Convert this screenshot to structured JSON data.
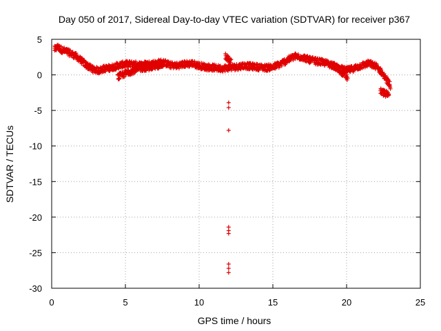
{
  "chart_data": {
    "type": "scatter",
    "title": "Day 050 of 2017, Sidereal Day-to-day VTEC variation (SDTVAR) for receiver p367",
    "xlabel": "GPS time / hours",
    "ylabel": "SDTVAR / TECUs",
    "xlim": [
      0,
      25
    ],
    "ylim": [
      -30,
      5
    ],
    "xticks": [
      "0",
      "5",
      "10",
      "15",
      "20",
      "25"
    ],
    "yticks": [
      "5",
      "0",
      "-5",
      "-10",
      "-15",
      "-20",
      "-25",
      "-30"
    ],
    "grid": true,
    "marker": "+",
    "color": "#e00000",
    "series": [
      {
        "name": "SDTVAR",
        "trace": [
          [
            0.2,
            3.6
          ],
          [
            0.4,
            3.9
          ],
          [
            0.7,
            3.5
          ],
          [
            1.0,
            3.3
          ],
          [
            1.3,
            3.0
          ],
          [
            1.6,
            2.7
          ],
          [
            2.0,
            2.0
          ],
          [
            2.4,
            1.3
          ],
          [
            2.8,
            0.8
          ],
          [
            3.2,
            0.6
          ],
          [
            3.6,
            0.9
          ],
          [
            4.0,
            1.0
          ],
          [
            4.5,
            1.3
          ],
          [
            5.0,
            1.5
          ],
          [
            5.5,
            1.5
          ],
          [
            6.0,
            1.4
          ],
          [
            6.5,
            1.5
          ],
          [
            7.0,
            1.6
          ],
          [
            7.5,
            1.8
          ],
          [
            8.0,
            1.4
          ],
          [
            8.5,
            1.3
          ],
          [
            9.0,
            1.5
          ],
          [
            9.5,
            1.6
          ],
          [
            10.0,
            1.3
          ],
          [
            10.5,
            1.1
          ],
          [
            11.0,
            1.0
          ],
          [
            11.5,
            0.9
          ],
          [
            12.0,
            1.0
          ],
          [
            12.5,
            1.1
          ],
          [
            13.0,
            1.3
          ],
          [
            13.5,
            1.2
          ],
          [
            14.0,
            1.1
          ],
          [
            14.5,
            1.0
          ],
          [
            15.0,
            1.1
          ],
          [
            15.5,
            1.5
          ],
          [
            16.0,
            2.1
          ],
          [
            16.5,
            2.6
          ],
          [
            17.0,
            2.5
          ],
          [
            17.5,
            2.1
          ],
          [
            18.0,
            1.9
          ],
          [
            18.5,
            1.7
          ],
          [
            19.0,
            1.4
          ],
          [
            19.5,
            0.9
          ],
          [
            20.0,
            0.6
          ],
          [
            20.5,
            0.9
          ],
          [
            21.0,
            1.3
          ],
          [
            21.5,
            1.6
          ],
          [
            22.0,
            1.2
          ],
          [
            22.4,
            0.3
          ],
          [
            22.8,
            -1.0
          ],
          [
            23.0,
            -1.7
          ]
        ],
        "branches": [
          [
            [
              4.5,
              -0.3
            ],
            [
              5.2,
              0.4
            ],
            [
              6.0,
              0.9
            ],
            [
              7.0,
              1.2
            ],
            [
              7.6,
              1.5
            ]
          ],
          [
            [
              19.0,
              1.5
            ],
            [
              19.4,
              0.8
            ],
            [
              19.8,
              0.2
            ],
            [
              20.1,
              -0.5
            ]
          ],
          [
            [
              22.3,
              -2.3
            ],
            [
              22.6,
              -2.6
            ],
            [
              22.9,
              -2.9
            ]
          ],
          [
            [
              11.8,
              2.6
            ],
            [
              12.0,
              2.2
            ],
            [
              12.2,
              1.6
            ]
          ]
        ],
        "outliers": [
          [
            12.0,
            -3.9
          ],
          [
            12.0,
            -4.6
          ],
          [
            12.0,
            -7.8
          ],
          [
            12.0,
            -21.4
          ],
          [
            12.0,
            -21.9
          ],
          [
            12.0,
            -22.3
          ],
          [
            12.0,
            -26.6
          ],
          [
            12.0,
            -27.2
          ],
          [
            12.0,
            -27.8
          ]
        ]
      }
    ]
  }
}
